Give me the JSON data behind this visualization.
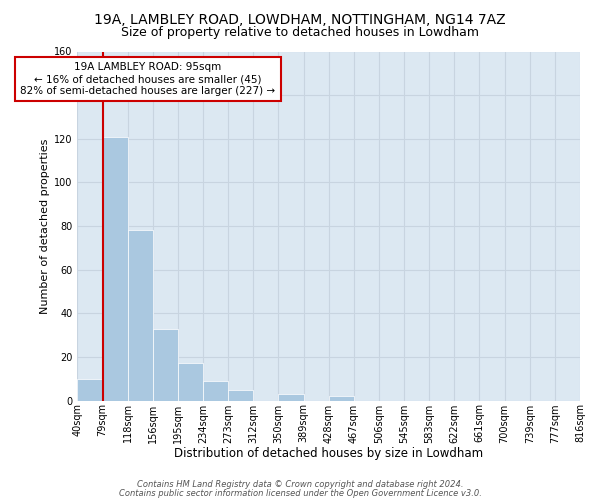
{
  "title_line1": "19A, LAMBLEY ROAD, LOWDHAM, NOTTINGHAM, NG14 7AZ",
  "title_line2": "Size of property relative to detached houses in Lowdham",
  "xlabel": "Distribution of detached houses by size in Lowdham",
  "ylabel": "Number of detached properties",
  "bar_values": [
    10,
    121,
    78,
    33,
    17,
    9,
    5,
    0,
    3,
    0,
    2,
    0,
    0,
    0,
    0,
    0,
    0,
    0,
    0,
    0
  ],
  "bin_labels": [
    "40sqm",
    "79sqm",
    "118sqm",
    "156sqm",
    "195sqm",
    "234sqm",
    "273sqm",
    "312sqm",
    "350sqm",
    "389sqm",
    "428sqm",
    "467sqm",
    "506sqm",
    "545sqm",
    "583sqm",
    "622sqm",
    "661sqm",
    "700sqm",
    "739sqm",
    "777sqm",
    "816sqm"
  ],
  "bar_color": "#aac8e0",
  "bar_edge_color": "white",
  "vline_color": "#cc0000",
  "annotation_text": "19A LAMBLEY ROAD: 95sqm\n← 16% of detached houses are smaller (45)\n82% of semi-detached houses are larger (227) →",
  "annotation_box_color": "white",
  "annotation_box_edge": "#cc0000",
  "ylim": [
    0,
    160
  ],
  "yticks": [
    0,
    20,
    40,
    60,
    80,
    100,
    120,
    140,
    160
  ],
  "grid_color": "#c8d4e0",
  "background_color": "#dce8f2",
  "footer_line1": "Contains HM Land Registry data © Crown copyright and database right 2024.",
  "footer_line2": "Contains public sector information licensed under the Open Government Licence v3.0.",
  "title_fontsize": 10,
  "subtitle_fontsize": 9,
  "xlabel_fontsize": 8.5,
  "ylabel_fontsize": 8,
  "tick_fontsize": 7,
  "annotation_fontsize": 7.5,
  "footer_fontsize": 6
}
